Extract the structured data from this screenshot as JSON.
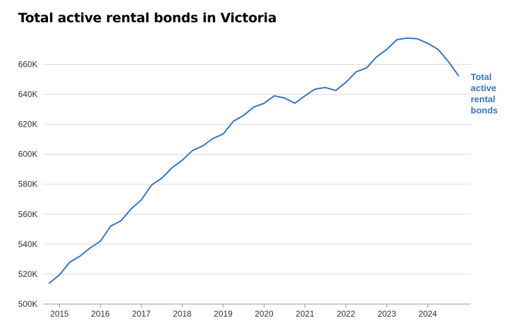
{
  "chart_data": {
    "type": "line",
    "title": "Total active rental bonds in Victoria",
    "xlabel": "",
    "ylabel": "",
    "x_ticks": [
      "2015",
      "2016",
      "2017",
      "2018",
      "2019",
      "2020",
      "2021",
      "2022",
      "2023",
      "2024"
    ],
    "y_ticks": [
      "500K",
      "520K",
      "540K",
      "560K",
      "580K",
      "600K",
      "620K",
      "640K",
      "660K"
    ],
    "ylim": [
      500000,
      676000
    ],
    "xlim": [
      2014.6,
      2025.05
    ],
    "grid": true,
    "legend": "none",
    "series": [
      {
        "name": "Total active rental bonds",
        "label_lines": [
          "Total",
          "active",
          "rental",
          "bonds"
        ],
        "color": "#3874be",
        "x": [
          2014.75,
          2015.0,
          2015.25,
          2015.5,
          2015.75,
          2016.0,
          2016.25,
          2016.5,
          2016.75,
          2017.0,
          2017.25,
          2017.5,
          2017.75,
          2018.0,
          2018.25,
          2018.5,
          2018.75,
          2019.0,
          2019.25,
          2019.5,
          2019.75,
          2020.0,
          2020.25,
          2020.5,
          2020.75,
          2021.0,
          2021.25,
          2021.5,
          2021.75,
          2022.0,
          2022.25,
          2022.5,
          2022.75,
          2023.0,
          2023.25,
          2023.5,
          2023.75,
          2024.0,
          2024.25,
          2024.5,
          2024.75
        ],
        "values": [
          514000,
          519500,
          528000,
          532000,
          537500,
          542000,
          552000,
          555500,
          563500,
          569500,
          579500,
          584000,
          591000,
          596000,
          602500,
          605500,
          610500,
          613500,
          622000,
          626000,
          631500,
          634000,
          639000,
          637500,
          634000,
          639000,
          643500,
          644500,
          642500,
          648000,
          655000,
          657500,
          665000,
          670000,
          676500,
          677500,
          677000,
          674000,
          670000,
          662000,
          652500
        ]
      }
    ]
  }
}
